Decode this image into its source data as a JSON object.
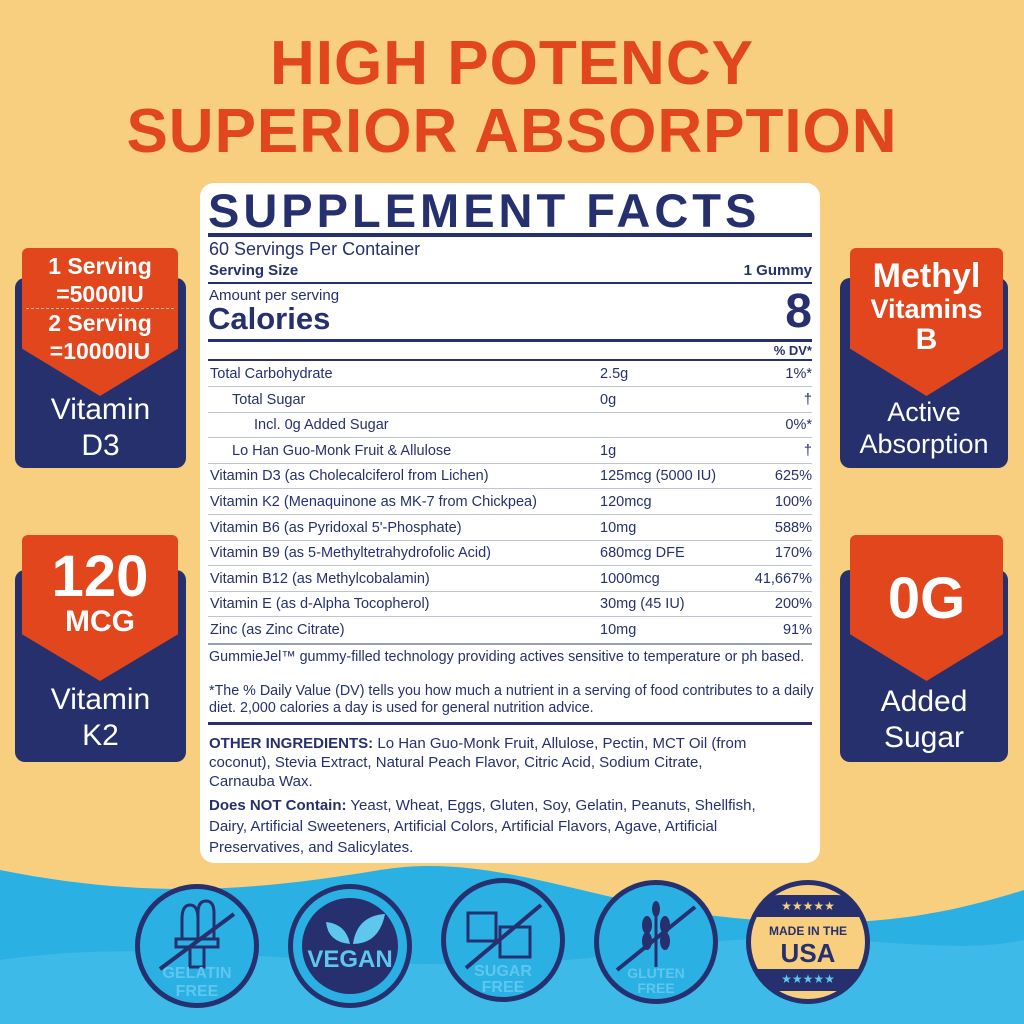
{
  "headline": {
    "line1": "HIGH POTENCY",
    "line2": "SUPERIOR ABSORPTION"
  },
  "facts": {
    "title": "SUPPLEMENT FACTS",
    "servings_per_container": "60 Servings Per Container",
    "serving_size_label": "Serving Size",
    "serving_size_value": "1 Gummy",
    "amount_per_serving": "Amount per serving",
    "calories_label": "Calories",
    "calories_value": "8",
    "dv_header": "% DV*",
    "rows": [
      {
        "name": "Total Carbohydrate",
        "amount": "2.5g",
        "dv": "1%*",
        "indent": 0
      },
      {
        "name": "Total Sugar",
        "amount": "0g",
        "dv": "†",
        "indent": 1
      },
      {
        "name": "Incl. 0g Added Sugar",
        "amount": "",
        "dv": "0%*",
        "indent": 2
      },
      {
        "name": "Lo Han Guo-Monk Fruit & Allulose",
        "amount": "1g",
        "dv": "†",
        "indent": 1
      },
      {
        "name": "Vitamin D3 (as Cholecalciferol from Lichen)",
        "amount": "125mcg (5000 IU)",
        "dv": "625%",
        "indent": 0
      },
      {
        "name": "Vitamin K2 (Menaquinone as MK-7 from Chickpea)",
        "amount": "120mcg",
        "dv": "100%",
        "indent": 0
      },
      {
        "name": "Vitamin B6 (as Pyridoxal 5'-Phosphate)",
        "amount": "10mg",
        "dv": "588%",
        "indent": 0
      },
      {
        "name": "Vitamin B9 (as 5-Methyltetrahydrofolic Acid)",
        "amount": "680mcg DFE",
        "dv": "170%",
        "indent": 0
      },
      {
        "name": "Vitamin B12 (as Methylcobalamin)",
        "amount": "1000mcg",
        "dv": "41,667%",
        "indent": 0
      },
      {
        "name": "Vitamin E (as d-Alpha Tocopherol)",
        "amount": "30mg (45 IU)",
        "dv": "200%",
        "indent": 0
      },
      {
        "name": "Zinc (as Zinc Citrate)",
        "amount": "10mg",
        "dv": "91%",
        "indent": 0
      }
    ],
    "gummiejel_note": "GummieJel™ gummy-filled technology providing actives sensitive to temperature or ph based.",
    "dv_note": "*The % Daily Value (DV) tells you how much a nutrient in a serving of food contributes to a daily diet. 2,000 calories a day is used for general nutrition advice.",
    "other_ingredients_label": "OTHER INGREDIENTS:",
    "other_ingredients": " Lo Han Guo-Monk Fruit, Allulose, Pectin, MCT Oil (from coconut), Stevia Extract, Natural Peach Flavor, Citric Acid, Sodium Citrate, Carnauba Wax.",
    "not_contain_label": "Does NOT Contain:",
    "not_contain": " Yeast, Wheat, Eggs, Gluten, Soy, Gelatin, Peanuts, Shellfish, Dairy, Artificial Sweeteners, Artificial Colors, Artificial Flavors, Agave, Artificial Preservatives, and Salicylates."
  },
  "badges": {
    "d3": {
      "line1": "1 Serving",
      "line2": "=5000IU",
      "line3": "2 Serving",
      "line4": "=10000IU",
      "name1": "Vitamin",
      "name2": "D3"
    },
    "k2": {
      "big": "120",
      "unit": "MCG",
      "name1": "Vitamin",
      "name2": "K2"
    },
    "methyl": {
      "line1": "Methyl",
      "line2": "Vitamins",
      "line3": "B",
      "name1": "Active",
      "name2": "Absorption"
    },
    "sugar": {
      "big": "0G",
      "name1": "Added",
      "name2": "Sugar"
    }
  },
  "icons": [
    {
      "icon": "gelatin-free-icon",
      "line1": "GELATIN",
      "line2": "FREE"
    },
    {
      "icon": "vegan-leaf-icon",
      "line1": "VEGAN",
      "line2": ""
    },
    {
      "icon": "sugar-cube-icon",
      "line1": "SUGAR",
      "line2": "FREE"
    },
    {
      "icon": "wheat-icon",
      "line1": "GLUTEN",
      "line2": "FREE"
    },
    {
      "icon": "made-in-usa-icon",
      "line1": "MADE IN THE",
      "line2": "USA"
    }
  ],
  "colors": {
    "background": "#f8cf7e",
    "navy": "#26306e",
    "orange": "#e1461c",
    "blue": "#2bb0e4"
  }
}
